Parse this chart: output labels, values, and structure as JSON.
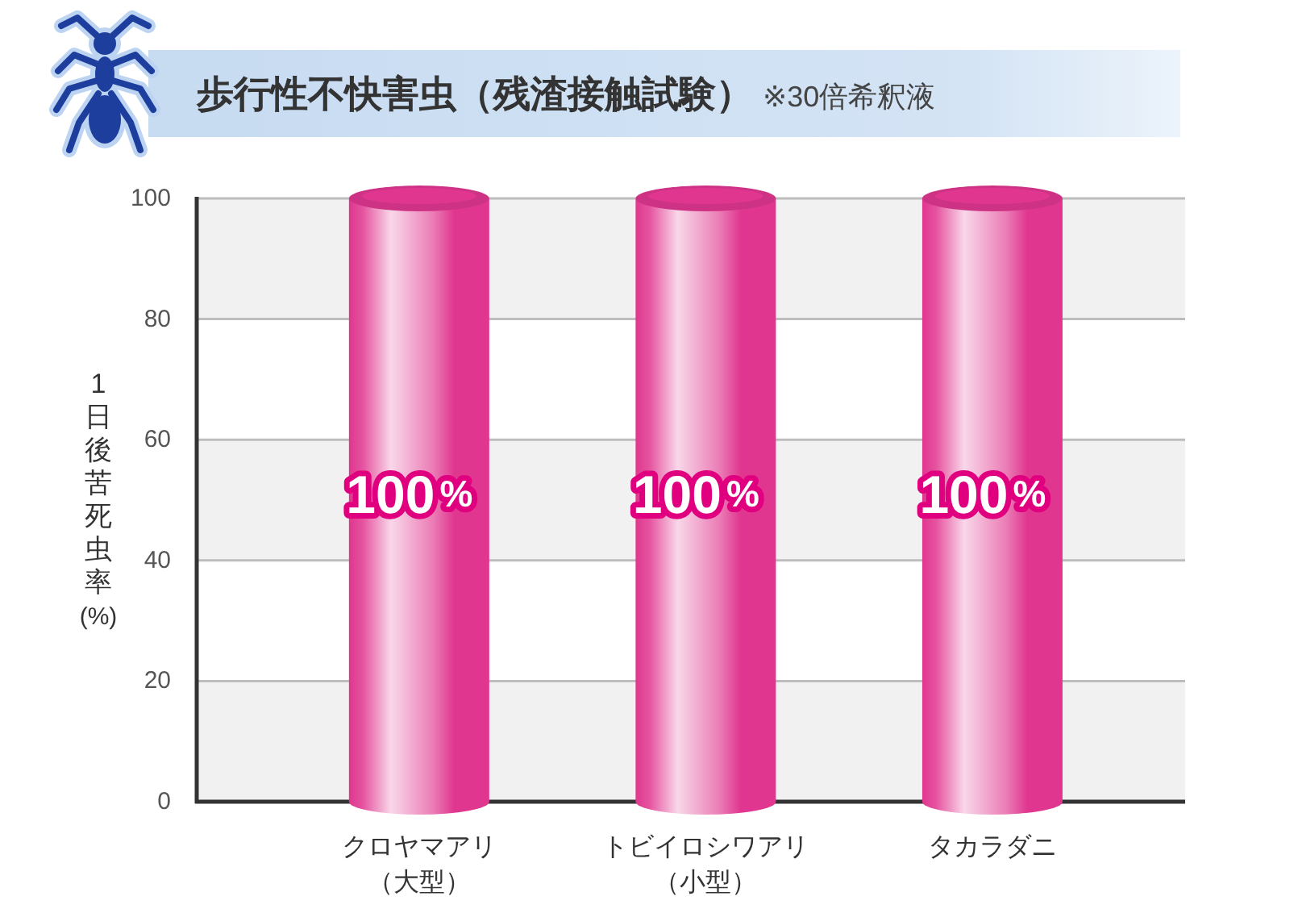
{
  "chart_data": {
    "type": "bar",
    "title": "歩行性不快害虫（残渣接触試験）",
    "subtitle": "※30倍希釈液",
    "ylabel": "1日後苦死虫率(%)",
    "categories": [
      "クロヤマアリ（大型）",
      "トビイロシワアリ（小型）",
      "タカラダニ"
    ],
    "values": [
      100,
      100,
      100
    ],
    "color": "#e0368f",
    "value_labels": [
      "100%",
      "100%",
      "100%"
    ],
    "ylim": [
      0,
      100
    ],
    "yticks": [
      0,
      20,
      40,
      60,
      80,
      100
    ],
    "grid": "y"
  }
}
